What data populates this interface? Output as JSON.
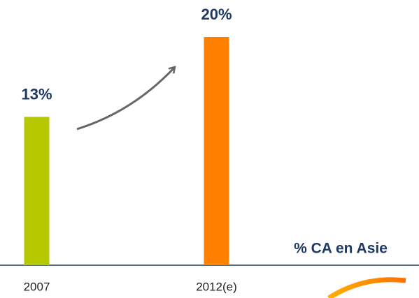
{
  "chart_data": {
    "type": "bar",
    "categories": [
      "2007",
      "2012(e)"
    ],
    "values": [
      13,
      20
    ],
    "value_labels": [
      "13%",
      "20%"
    ],
    "colors": [
      "#b5c800",
      "#ff8000"
    ],
    "ylim": [
      0,
      20
    ],
    "x_label": "% CA en Asie"
  }
}
